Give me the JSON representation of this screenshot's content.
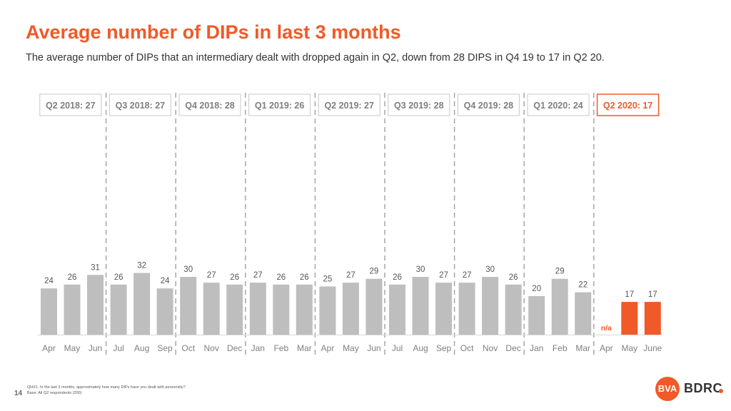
{
  "title": "Average number of DIPs in last 3 months",
  "subtitle": "The average number of DIPs that an intermediary dealt with dropped again in Q2, down from 28 DIPS in Q4 19 to 17 in Q2 20.",
  "footnote": {
    "question": "QHX1. In the last 3 months, approximately how many DIPs have you dealt with personally?",
    "base": "Base: All Q2 respondents (200)"
  },
  "page_number": "14",
  "logo": {
    "mark": "BVA",
    "text": "BDRC"
  },
  "colors": {
    "accent": "#f05a28",
    "bar": "#bebebe",
    "text": "#7f7f7f",
    "divider": "#a6a6a6"
  },
  "chart_data": {
    "type": "bar",
    "title": "Average number of DIPs in last 3 months",
    "quarters": [
      {
        "label": "Q2 2018: 27",
        "highlight": false,
        "months": [
          "Apr",
          "May",
          "Jun"
        ],
        "values": [
          24,
          26,
          31
        ]
      },
      {
        "label": "Q3 2018: 27",
        "highlight": false,
        "months": [
          "Jul",
          "Aug",
          "Sep"
        ],
        "values": [
          26,
          32,
          24
        ]
      },
      {
        "label": "Q4 2018: 28",
        "highlight": false,
        "months": [
          "Oct",
          "Nov",
          "Dec"
        ],
        "values": [
          30,
          27,
          26
        ]
      },
      {
        "label": "Q1 2019: 26",
        "highlight": false,
        "months": [
          "Jan",
          "Feb",
          "Mar"
        ],
        "values": [
          27,
          26,
          26
        ]
      },
      {
        "label": "Q2 2019: 27",
        "highlight": false,
        "months": [
          "Apr",
          "May",
          "Jun"
        ],
        "values": [
          25,
          27,
          29
        ]
      },
      {
        "label": "Q3 2019: 28",
        "highlight": false,
        "months": [
          "Jul",
          "Aug",
          "Sep"
        ],
        "values": [
          26,
          30,
          27
        ]
      },
      {
        "label": "Q4 2019: 28",
        "highlight": false,
        "months": [
          "Oct",
          "Nov",
          "Dec"
        ],
        "values": [
          27,
          30,
          26
        ]
      },
      {
        "label": "Q1 2020: 24",
        "highlight": false,
        "months": [
          "Jan",
          "Feb",
          "Mar"
        ],
        "values": [
          20,
          29,
          22
        ]
      },
      {
        "label": "Q2 2020: 17",
        "highlight": true,
        "months": [
          "Apr",
          "May",
          "June"
        ],
        "values": [
          null,
          17,
          17
        ]
      }
    ],
    "missing_label": "n/a",
    "ylim": [
      0,
      45
    ]
  }
}
